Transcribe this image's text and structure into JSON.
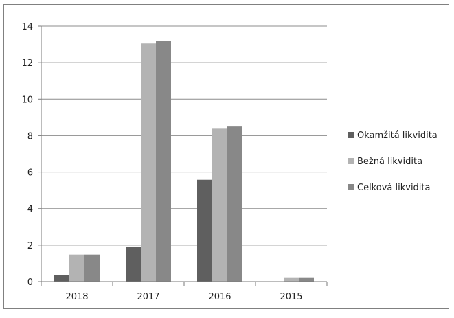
{
  "chart_data": {
    "type": "bar",
    "title": "",
    "xlabel": "",
    "ylabel": "",
    "categories": [
      "2018",
      "2017",
      "2016",
      "2015"
    ],
    "series": [
      {
        "name": "Okamžitá likvidita",
        "color": "#5f5f5f",
        "values": [
          0.35,
          1.92,
          5.58,
          0.0
        ]
      },
      {
        "name": "Bežná likvidita",
        "color": "#b3b3b3",
        "values": [
          1.48,
          13.05,
          8.38,
          0.2
        ]
      },
      {
        "name": "Celková likvidita",
        "color": "#888888",
        "values": [
          1.48,
          13.18,
          8.5,
          0.2
        ]
      }
    ],
    "ylim": [
      0,
      14
    ],
    "yticks": [
      0,
      2,
      4,
      6,
      8,
      10,
      12,
      14
    ],
    "grid": "horizontal",
    "legend": "right"
  }
}
